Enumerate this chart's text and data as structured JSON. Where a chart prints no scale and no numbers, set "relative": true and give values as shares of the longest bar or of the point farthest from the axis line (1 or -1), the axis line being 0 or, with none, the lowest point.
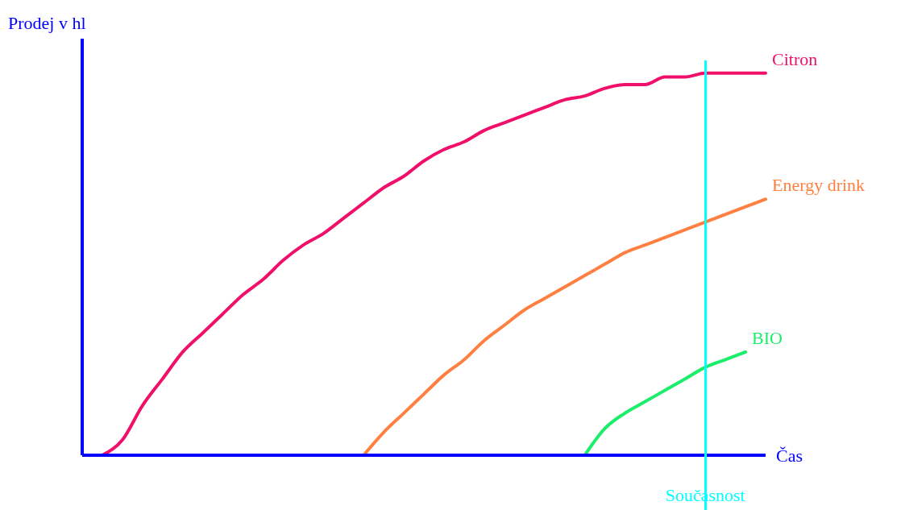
{
  "chart_data": {
    "type": "line",
    "relative": true,
    "ylabel": "Prodej v hl",
    "xlabel": "Čas",
    "marker": "none",
    "line_style": "solid",
    "categories": [
      null,
      null,
      null,
      null,
      null,
      null,
      null,
      null,
      null,
      null,
      null,
      null,
      null,
      null,
      null,
      null,
      null,
      null,
      null,
      null,
      null,
      null,
      null,
      null,
      null,
      null,
      null,
      null,
      null,
      null,
      null,
      null,
      null,
      null,
      null
    ],
    "series": [
      {
        "name": "Citron",
        "color": "#f0106a",
        "values": [
          null,
          0,
          0.04,
          0.13,
          0.2,
          0.27,
          0.32,
          0.37,
          0.42,
          0.46,
          0.51,
          0.55,
          0.58,
          0.62,
          0.66,
          0.7,
          0.73,
          0.77,
          0.8,
          0.82,
          0.85,
          0.87,
          0.89,
          0.91,
          0.93,
          0.94,
          0.96,
          0.97,
          0.97,
          0.99,
          0.99,
          1,
          1,
          1,
          1
        ]
      },
      {
        "name": "Energy drink",
        "color": "#ff8040",
        "values": [
          null,
          null,
          null,
          null,
          null,
          null,
          null,
          null,
          null,
          null,
          null,
          null,
          null,
          null,
          0,
          0.06,
          0.11,
          0.16,
          0.21,
          0.25,
          0.3,
          0.34,
          0.38,
          0.41,
          0.44,
          0.47,
          0.5,
          0.53,
          0.55,
          0.57,
          0.59,
          0.61,
          0.63,
          0.65,
          0.67
        ]
      },
      {
        "name": "BIO",
        "color": "#1aee6a",
        "values": [
          null,
          null,
          null,
          null,
          null,
          null,
          null,
          null,
          null,
          null,
          null,
          null,
          null,
          null,
          null,
          null,
          null,
          null,
          null,
          null,
          null,
          null,
          null,
          null,
          null,
          0,
          0.07,
          0.11,
          0.14,
          0.17,
          0.2,
          0.23,
          0.25,
          0.27,
          null
        ]
      }
    ],
    "annotations": [
      "Současnost"
    ]
  }
}
